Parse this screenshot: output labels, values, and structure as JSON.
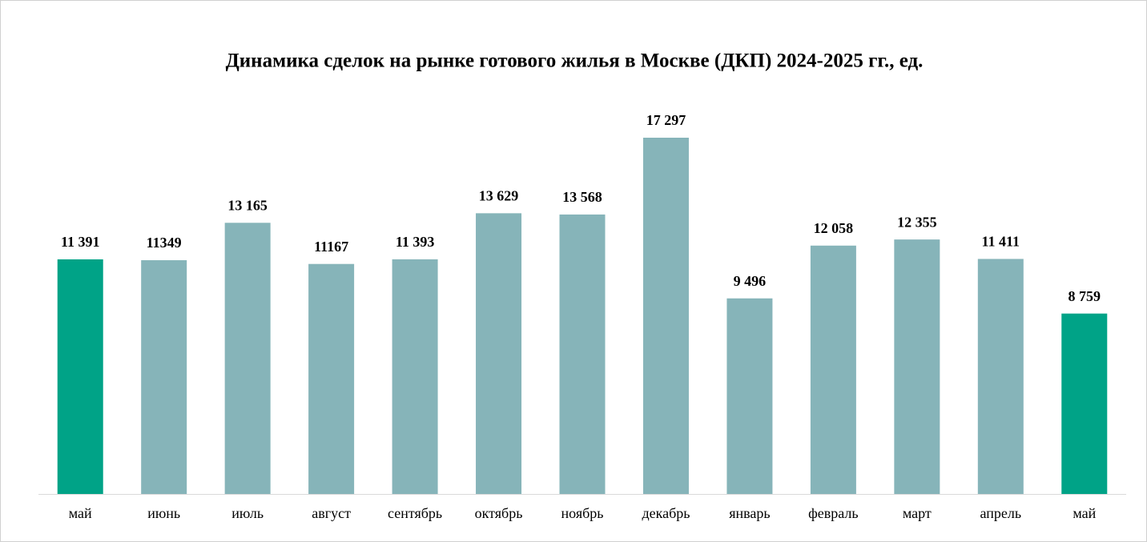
{
  "chart_data": {
    "type": "bar",
    "title": "Динамика сделок на рынке готового жилья в Москве (ДКП) 2024-2025 гг., ед.",
    "categories": [
      "май",
      "июнь",
      "июль",
      "август",
      "сентябрь",
      "октябрь",
      "ноябрь",
      "декабрь",
      "январь",
      "февраль",
      "март",
      "апрель",
      "май"
    ],
    "values": [
      11391,
      11349,
      13165,
      11167,
      11393,
      13629,
      13568,
      17297,
      9496,
      12058,
      12355,
      11411,
      8759
    ],
    "value_labels": [
      "11 391",
      "11349",
      "13 165",
      "11167",
      "11 393",
      "13 629",
      "13 568",
      "17 297",
      "9 496",
      "12 058",
      "12 355",
      "11 411",
      "8 759"
    ],
    "colors": [
      "#00a387",
      "#86b4b9",
      "#86b4b9",
      "#86b4b9",
      "#86b4b9",
      "#86b4b9",
      "#86b4b9",
      "#86b4b9",
      "#86b4b9",
      "#86b4b9",
      "#86b4b9",
      "#86b4b9",
      "#00a387"
    ]
  }
}
